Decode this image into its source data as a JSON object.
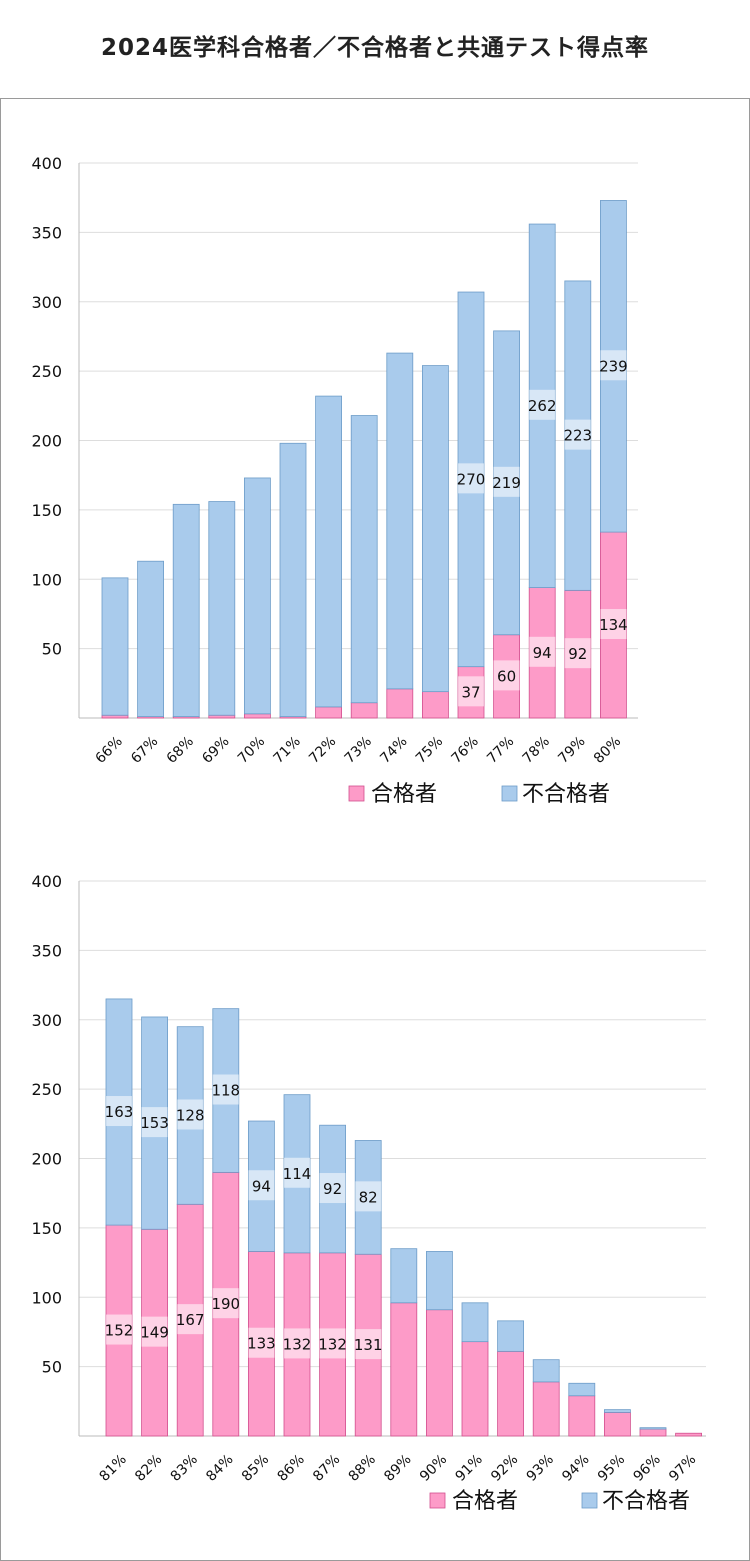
{
  "title": "2024医学科合格者／不合格者と共通テスト得点率",
  "colors": {
    "pass": "#fd9bc8",
    "pass_stroke": "#d24f8e",
    "fail": "#a9cbec",
    "fail_stroke": "#6d9cc8",
    "label_bg": "#ffffff"
  },
  "chart_data": [
    {
      "type": "bar",
      "stacked": true,
      "ylim": [
        0,
        400
      ],
      "yticks": [
        50,
        100,
        150,
        200,
        250,
        300,
        350,
        400
      ],
      "grid": true,
      "legend_position": "bottom-right",
      "categories": [
        "66%",
        "67%",
        "68%",
        "69%",
        "70%",
        "71%",
        "72%",
        "73%",
        "74%",
        "75%",
        "76%",
        "77%",
        "78%",
        "79%",
        "80%"
      ],
      "series": [
        {
          "name": "合格者",
          "color": "#fd9bc8",
          "values": [
            2,
            1,
            1,
            2,
            3,
            1,
            8,
            11,
            21,
            19,
            37,
            60,
            94,
            92,
            134
          ],
          "labels": [
            "",
            "",
            "",
            "",
            "",
            "",
            "",
            "",
            "",
            "",
            "37",
            "60",
            "94",
            "92",
            "134"
          ]
        },
        {
          "name": "不合格者",
          "color": "#a9cbec",
          "values": [
            99,
            112,
            153,
            154,
            170,
            197,
            224,
            207,
            242,
            235,
            270,
            219,
            262,
            223,
            239
          ],
          "labels": [
            "",
            "",
            "",
            "",
            "",
            "",
            "",
            "",
            "",
            "",
            "270",
            "219",
            "262",
            "223",
            "239"
          ]
        }
      ]
    },
    {
      "type": "bar",
      "stacked": true,
      "ylim": [
        0,
        400
      ],
      "yticks": [
        50,
        100,
        150,
        200,
        250,
        300,
        350,
        400
      ],
      "grid": true,
      "legend_position": "bottom-right",
      "categories": [
        "81%",
        "82%",
        "83%",
        "84%",
        "85%",
        "86%",
        "87%",
        "88%",
        "89%",
        "90%",
        "91%",
        "92%",
        "93%",
        "94%",
        "95%",
        "96%",
        "97%"
      ],
      "series": [
        {
          "name": "合格者",
          "color": "#fd9bc8",
          "values": [
            152,
            149,
            167,
            190,
            133,
            132,
            132,
            131,
            96,
            91,
            68,
            61,
            39,
            29,
            17,
            5,
            2
          ],
          "labels": [
            "152",
            "149",
            "167",
            "190",
            "133",
            "132",
            "132",
            "131",
            "",
            "",
            "",
            "",
            "",
            "",
            "",
            "",
            ""
          ]
        },
        {
          "name": "不合格者",
          "color": "#a9cbec",
          "values": [
            163,
            153,
            128,
            118,
            94,
            114,
            92,
            82,
            39,
            42,
            28,
            22,
            16,
            9,
            2,
            1,
            0
          ],
          "labels": [
            "163",
            "153",
            "128",
            "118",
            "94",
            "114",
            "92",
            "82",
            "",
            "",
            "",
            "",
            "",
            "",
            "",
            "",
            ""
          ]
        }
      ]
    }
  ]
}
